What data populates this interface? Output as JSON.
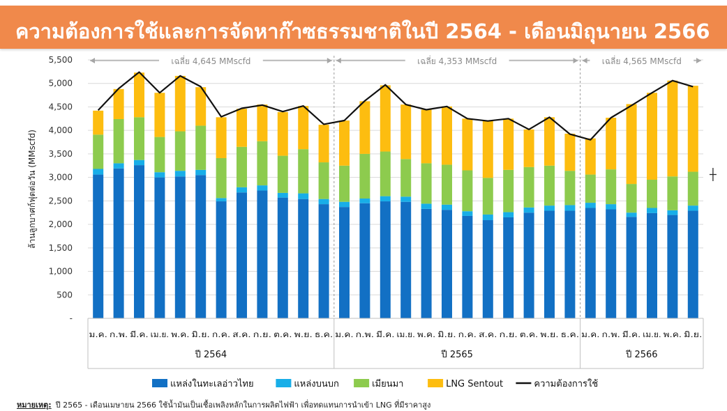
{
  "page": {
    "title": "ความต้องการใช้และการจัดหาก๊าซธรรมชาติในปี 2564 - เดือนมิถุนายน 2566",
    "title_bg": "#f0894b"
  },
  "footnote": {
    "label": "หมายเหตุ:",
    "text": "ปี 2565 - เดือนเมษายน 2566 ใช้น้ำมันเป็นเชื้อเพลิงหลักในการผลิตไฟฟ้า เพื่อทดแทนการนำเข้า LNG ที่มีราคาสูง"
  },
  "chart_data": {
    "type": "bar",
    "stacked": true,
    "ylabel": "ล้านลูกบาศก์ฟุตต่อวัน (MMscfd)",
    "ylim": [
      0,
      5500
    ],
    "yticks": [
      0,
      500,
      1000,
      1500,
      2000,
      2500,
      3000,
      3500,
      4000,
      4500,
      5000,
      5500
    ],
    "ytick_labels": [
      "-",
      "500",
      "1,000",
      "1,500",
      "2,000",
      "2,500",
      "3,000",
      "3,500",
      "4,000",
      "4,500",
      "5,000",
      "5,500"
    ],
    "grid": true,
    "legend_position": "bottom",
    "categories": [
      "ม.ค.",
      "ก.พ.",
      "มี.ค.",
      "เม.ย.",
      "พ.ค.",
      "มิ.ย.",
      "ก.ค.",
      "ส.ค.",
      "ก.ย.",
      "ต.ค.",
      "พ.ย.",
      "ธ.ค.",
      "ม.ค.",
      "ก.พ.",
      "มี.ค.",
      "เม.ย.",
      "พ.ค.",
      "มิ.ย.",
      "ก.ค.",
      "ส.ค.",
      "ก.ย.",
      "ต.ค.",
      "พ.ย.",
      "ธ.ค.",
      "ม.ค.",
      "ก.พ.",
      "มี.ค.",
      "เม.ย.",
      "พ.ค.",
      "มิ.ย."
    ],
    "groups": [
      {
        "label": "ปี 2564",
        "start": 0,
        "count": 12,
        "avg_label": "เฉลี่ย 4,645 MMscfd"
      },
      {
        "label": "ปี 2565",
        "start": 12,
        "count": 12,
        "avg_label": "เฉลี่ย 4,353 MMscfd"
      },
      {
        "label": "ปี 2566",
        "start": 24,
        "count": 6,
        "avg_label": "เฉลี่ย 4,565 MMscfd"
      }
    ],
    "series": [
      {
        "name": "แหล่งในทะเลอ่าวไทย",
        "color": "#1270c4",
        "values": [
          3060,
          3190,
          3260,
          3000,
          3020,
          3050,
          2490,
          2680,
          2720,
          2570,
          2540,
          2430,
          2370,
          2450,
          2490,
          2480,
          2330,
          2310,
          2180,
          2090,
          2150,
          2250,
          2290,
          2290,
          2350,
          2320,
          2160,
          2240,
          2200,
          2290
        ]
      },
      {
        "name": "แหล่งบนบก",
        "color": "#18aee8",
        "values": [
          120,
          110,
          110,
          110,
          120,
          110,
          70,
          110,
          110,
          100,
          120,
          110,
          110,
          100,
          110,
          110,
          110,
          110,
          100,
          120,
          110,
          110,
          110,
          120,
          110,
          110,
          90,
          110,
          100,
          110
        ]
      },
      {
        "name": "เมียนมา",
        "color": "#8dcb4e",
        "values": [
          730,
          940,
          910,
          750,
          840,
          940,
          850,
          860,
          940,
          790,
          940,
          780,
          770,
          950,
          950,
          800,
          860,
          850,
          870,
          780,
          900,
          860,
          850,
          730,
          600,
          740,
          610,
          600,
          720,
          720
        ]
      },
      {
        "name": "LNG Sentout",
        "color": "#fdbd10",
        "values": [
          510,
          640,
          950,
          940,
          1180,
          820,
          870,
          810,
          780,
          930,
          920,
          800,
          960,
          1120,
          1410,
          1160,
          1140,
          1240,
          1100,
          1210,
          1090,
          800,
          1030,
          790,
          770,
          1100,
          1700,
          1850,
          2040,
          1830
        ]
      },
      {
        "name": "ความต้องการใช้",
        "color": "#111111",
        "type": "line",
        "values": [
          4430,
          4890,
          5240,
          4800,
          5160,
          4930,
          4290,
          4470,
          4540,
          4400,
          4520,
          4130,
          4210,
          4630,
          4970,
          4550,
          4440,
          4510,
          4250,
          4200,
          4250,
          4020,
          4280,
          3920,
          3800,
          4270,
          4530,
          4800,
          5060,
          4930
        ]
      }
    ]
  }
}
